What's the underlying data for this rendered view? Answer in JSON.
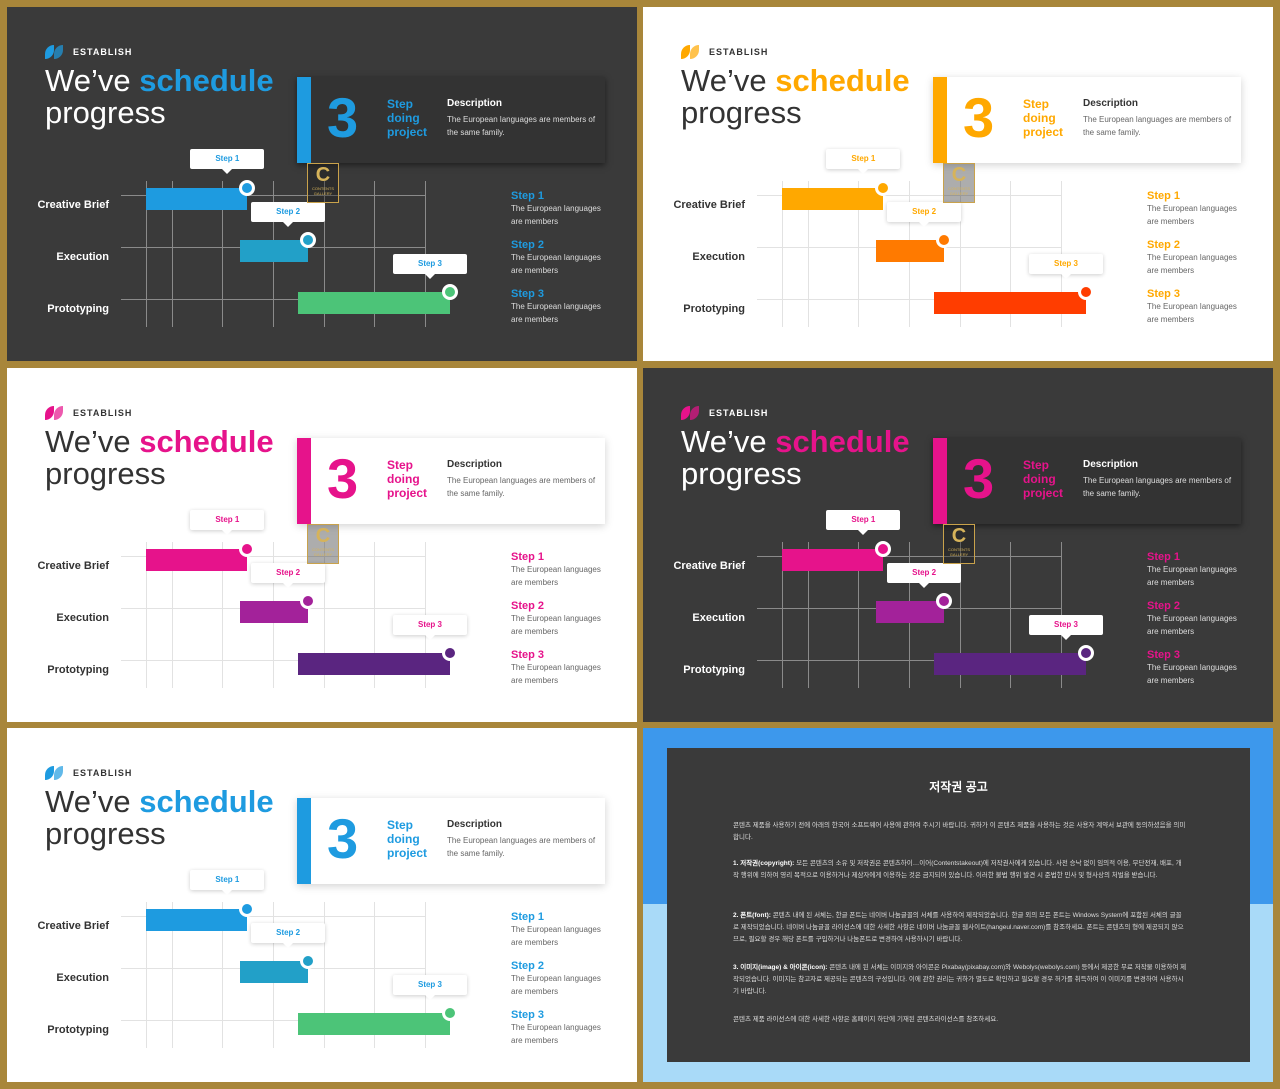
{
  "common": {
    "brand": "ESTABLISH",
    "title_pre": "We’ve",
    "title_accent": "schedule",
    "title_post": "progress",
    "big_number": "3",
    "step_text": [
      "Step",
      "doing",
      "project"
    ],
    "desc_heading": "Description",
    "desc_body": "The European languages are members of the same family.",
    "rows": [
      "Creative Brief",
      "Execution",
      "Prototyping"
    ],
    "callouts": [
      "Step 1",
      "Step 2",
      "Step 3"
    ],
    "steps": [
      {
        "heading": "Step 1",
        "body": "The European languages are members"
      },
      {
        "heading": "Step 2",
        "body": "The European languages are members"
      },
      {
        "heading": "Step 3",
        "body": "The European languages are members"
      }
    ],
    "watermark": {
      "letter": "C",
      "text": "CONTENTS GALLERY"
    }
  },
  "slides": [
    {
      "theme": "dark",
      "accent": "#1E9BE0",
      "bars": [
        "#1E9BE0",
        "#22A0C8",
        "#4CC478"
      ]
    },
    {
      "theme": "light",
      "accent": "#FFA800",
      "bars": [
        "#FFA800",
        "#FF7A00",
        "#FF3D00"
      ]
    },
    {
      "theme": "light",
      "accent": "#E6138B",
      "bars": [
        "#E6138B",
        "#A3229A",
        "#5A2580"
      ]
    },
    {
      "theme": "dark",
      "accent": "#E6138B",
      "bars": [
        "#E6138B",
        "#A3229A",
        "#5A2580"
      ]
    },
    {
      "theme": "light",
      "accent": "#1E9BE0",
      "bars": [
        "#1E9BE0",
        "#22A0C8",
        "#4CC478"
      ]
    }
  ],
  "gantt": {
    "columns": 6,
    "tasks": [
      {
        "start": 0,
        "end": 2
      },
      {
        "start": 1.85,
        "end": 3.2
      },
      {
        "start": 3,
        "end": 6
      }
    ]
  },
  "notice": {
    "heading": "저작권 공고",
    "intro": "콘텐츠 제품을 사용하기 전에 아래의 한국어 소프트웨어 사용에 관하여 주시기 바랍니다. 귀하가 이 콘텐츠 제품을 사용하는 것은 사용자 계약서 보관에 동의하셨음을 의미합니다.",
    "p1_label": "1. 저작권(copyright):",
    "p1": "모든 콘텐츠의 소유 및 저작권은 콘텐츠하이…이어(Contentstakeout)에 저작권사에게 있습니다. 사전 승낙 없이 임의적 이용, 무단전재, 배포, 개작 행위에 의하여 영리 목적으로 이용하거나 제삼자에게 이용하는 것은 금지되어 있습니다. 이러한 불법 행위 발견 시 준법한 민사 및 형사상의 처벌을 받습니다.",
    "p2_label": "2. 폰트(font):",
    "p2": "콘텐츠 내에 된 서체는, 한글 폰트는 네이버 나눔글꼴의 서체를 사용하여 제작되었습니다. 한글 외의 모든 폰트는 Windows System에 포함된 서체의 글꼴로 제작되었습니다. 네이버 나눔글꼴 라이선스에 대한 사세한 사항은 네이버 나눔글꼴 웹사이트(hangeul.naver.com)를 참조하세요. 폰트는 콘텐츠의 형에 제공되지 않으므로, 필요할 경우 해당 폰트를 구입하거나 나눔폰트로 변경하여 사용하시기 바랍니다.",
    "p3_label": "3. 이미지(image) & 아이콘(icon):",
    "p3": "콘텐츠 내에 된 서체는 이미지와 아이콘은 Pixabay(pixabay.com)와 Webolys(webolys.com) 등에서 제공한 무료 저작물 이용하여 제작되었습니다. 이미지는 참고자료 제공되는 콘텐츠의 구성입니다. 이에 관한 권리는 귀하가 별도로 확인하고 필요할 경우 허가를 취득하여 이 이미지를 변경하여 사용하시기 바랍니다.",
    "outro": "콘텐츠 제품 라이선스에 대한 사세한 사항은 홈페이지 하단에 기재된 콘텐츠라이선스를 참조하세요."
  }
}
